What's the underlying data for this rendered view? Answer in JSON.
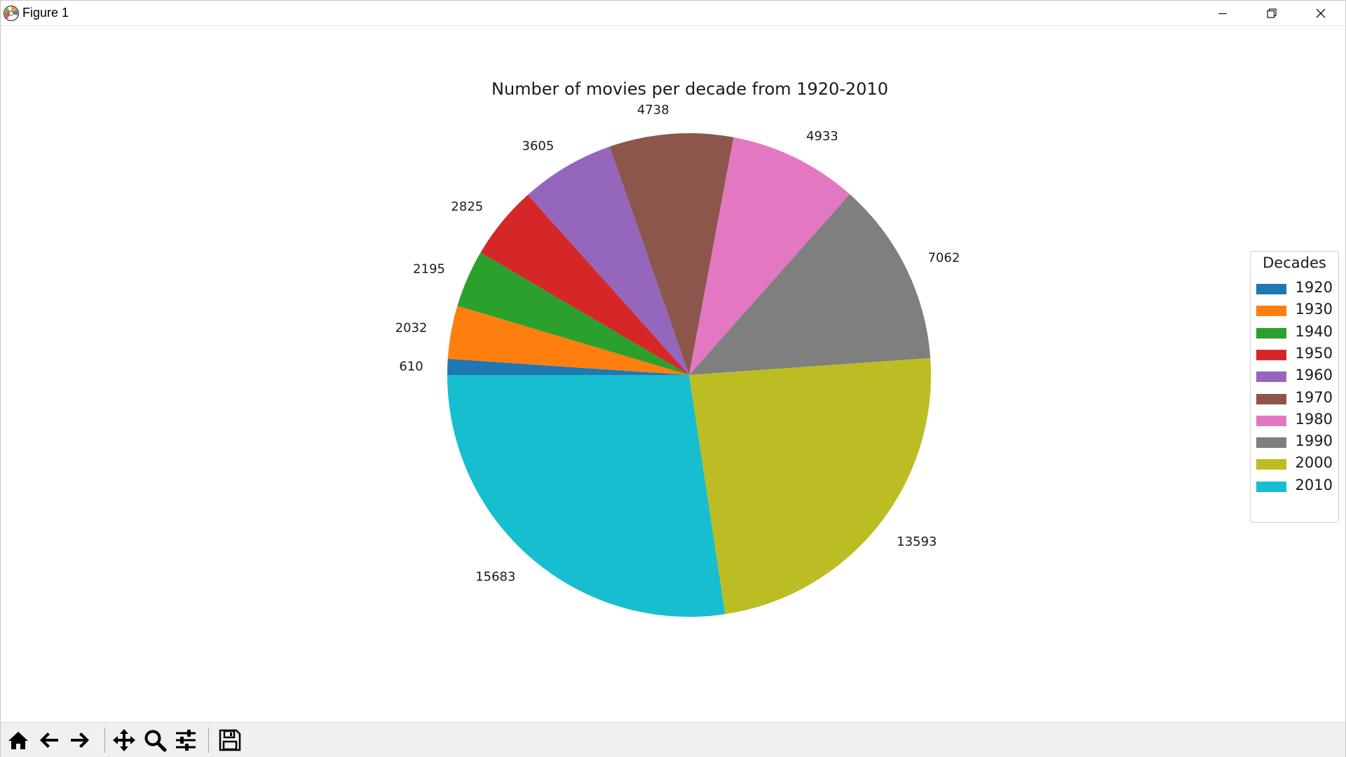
{
  "window": {
    "title": "Figure 1"
  },
  "toolbar": {
    "buttons": [
      "home-icon",
      "back-arrow-icon",
      "forward-arrow-icon",
      "pan-icon",
      "zoom-icon",
      "configure-subplots-icon",
      "save-icon"
    ]
  },
  "chart_data": {
    "type": "pie",
    "title": "Number of movies per decade from 1920-2010",
    "categories": [
      "1920",
      "1930",
      "1940",
      "1950",
      "1960",
      "1970",
      "1980",
      "1990",
      "2000",
      "2010"
    ],
    "values": [
      610,
      2032,
      2195,
      2825,
      3605,
      4738,
      4933,
      7062,
      13593,
      15683
    ],
    "colors": [
      "#1f77b4",
      "#ff7f0e",
      "#2ca02c",
      "#d62728",
      "#9467bd",
      "#8c564b",
      "#e377c2",
      "#7f7f7f",
      "#bcbd22",
      "#17becf"
    ],
    "start_angle_deg": 180,
    "direction": "clockwise",
    "legend_title": "Decades",
    "legend_position": "center-right",
    "show_value_labels": true
  }
}
